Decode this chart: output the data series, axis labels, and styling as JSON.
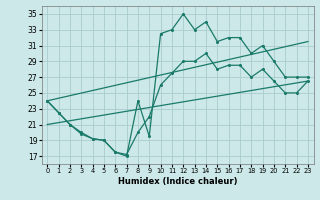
{
  "xlabel": "Humidex (Indice chaleur)",
  "bg_color": "#cce8e8",
  "grid_color": "#aacccc",
  "line_color": "#1a7a6a",
  "xlim": [
    -0.5,
    23.5
  ],
  "ylim": [
    16,
    36
  ],
  "yticks": [
    17,
    19,
    21,
    23,
    25,
    27,
    29,
    31,
    33,
    35
  ],
  "xticks": [
    0,
    1,
    2,
    3,
    4,
    5,
    6,
    7,
    8,
    9,
    10,
    11,
    12,
    13,
    14,
    15,
    16,
    17,
    18,
    19,
    20,
    21,
    22,
    23
  ],
  "line1_x": [
    0,
    1,
    2,
    3,
    4,
    5,
    6,
    7,
    8,
    9,
    10,
    11,
    12,
    13,
    14,
    15,
    16,
    17,
    18,
    19,
    20,
    21,
    22,
    23
  ],
  "line1_y": [
    24,
    22.5,
    21,
    20,
    19.2,
    19,
    17.5,
    17,
    24,
    19.5,
    32.5,
    33,
    35,
    33,
    34,
    31.5,
    32,
    32,
    30,
    31,
    29,
    27,
    27,
    27
  ],
  "line2_x": [
    0,
    1,
    2,
    3,
    4,
    5,
    6,
    7,
    8,
    9,
    10,
    11,
    12,
    13,
    14,
    15,
    16,
    17,
    18,
    19,
    20,
    21,
    22,
    23
  ],
  "line2_y": [
    24,
    22.5,
    21,
    19.8,
    19.2,
    19,
    17.5,
    17.2,
    20,
    22,
    26,
    27.5,
    29,
    29,
    30,
    28,
    28.5,
    28.5,
    27,
    28,
    26.5,
    25,
    25,
    26.5
  ],
  "line3_x": [
    0,
    23
  ],
  "line3_y": [
    21,
    26.5
  ],
  "line4_x": [
    0,
    23
  ],
  "line4_y": [
    24,
    31.5
  ]
}
